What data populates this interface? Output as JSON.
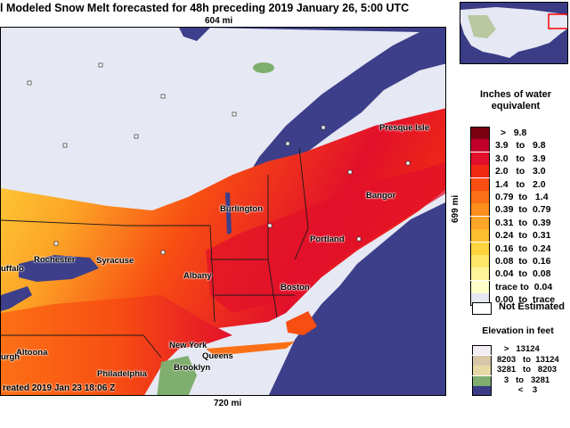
{
  "title": "l Modeled Snow Melt forecasted for 48h preceding 2019 January 26, 5:00 UTC",
  "distance_top": "604 mi",
  "distance_bottom": "720 mi",
  "distance_right": "699 mi",
  "created": "reated 2019 Jan 23 18:06 Z",
  "cities": [
    {
      "name": "Presque Isle"
    },
    {
      "name": "Bangor"
    },
    {
      "name": "Burlington"
    },
    {
      "name": "Portland"
    },
    {
      "name": "Rochester"
    },
    {
      "name": "Syracuse"
    },
    {
      "name": "uffalo"
    },
    {
      "name": "Albany"
    },
    {
      "name": "Boston"
    },
    {
      "name": "Altoona"
    },
    {
      "name": "urgh"
    },
    {
      "name": "New York"
    },
    {
      "name": "Queens"
    },
    {
      "name": "Brooklyn"
    },
    {
      "name": "Philadelphia"
    }
  ],
  "legend": {
    "title_line1": "Inches of water",
    "title_line2": "equivalent",
    "classes": [
      {
        "label": "  >   9.8",
        "color": "#7a0010"
      },
      {
        "label": "3.9   to   9.8",
        "color": "#c0002a"
      },
      {
        "label": "3.0   to   3.9",
        "color": "#e2102a"
      },
      {
        "label": "2.0   to   3.0",
        "color": "#f02a14"
      },
      {
        "label": "1.4   to   2.0",
        "color": "#f84e12"
      },
      {
        "label": "0.79  to   1.4",
        "color": "#fb7016"
      },
      {
        "label": "0.39  to  0.79",
        "color": "#fc8e1c"
      },
      {
        "label": "0.31  to  0.39",
        "color": "#fda526"
      },
      {
        "label": "0.24  to  0.31",
        "color": "#fdbd2e"
      },
      {
        "label": "0.16  to  0.24",
        "color": "#fed43e"
      },
      {
        "label": "0.08  to  0.16",
        "color": "#ffe76a"
      },
      {
        "label": "0.04  to  0.08",
        "color": "#fff49a"
      },
      {
        "label": "trace to  0.04",
        "color": "#ffffc8"
      },
      {
        "label": "0.00  to  trace",
        "color": "#e6e8f4"
      }
    ],
    "not_estimated": "Not Estimated",
    "elevation_title": "Elevation in feet",
    "elevation": [
      {
        "label": "   >   13124",
        "color": "#f2ecf4"
      },
      {
        "label": "8203   to  13124",
        "color": "#d8c6a8"
      },
      {
        "label": "3281   to   8203",
        "color": "#e8d8a6"
      },
      {
        "label": "   3   to   3281",
        "color": "#7fae6e"
      },
      {
        "label": "         <    3",
        "color": "#3a3d86"
      }
    ]
  },
  "colors": {
    "water": "#3d3f8a",
    "land_no_melt": "#e6e8f4",
    "inset_highlight": "#ff0000"
  }
}
